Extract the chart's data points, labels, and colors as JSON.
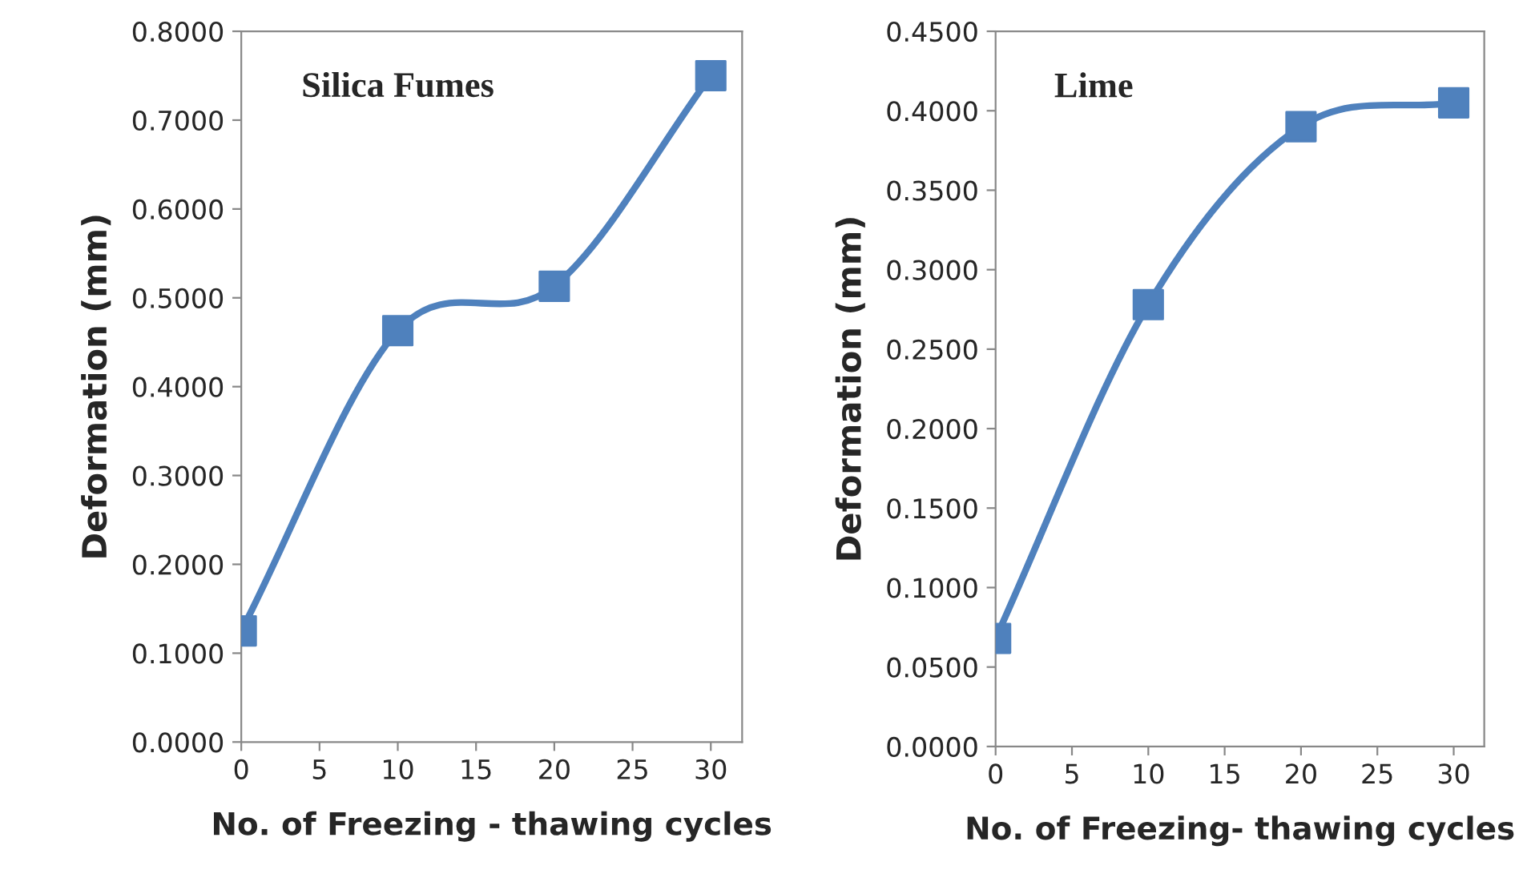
{
  "chart_data": [
    {
      "type": "line",
      "title": "Silica Fumes",
      "xlabel": "No. of Freezing - thawing cycles",
      "ylabel": "Deformation (mm)",
      "x": [
        0,
        10,
        20,
        30
      ],
      "series": [
        {
          "color": "#4f81bd",
          "values": [
            0.125,
            0.463,
            0.513,
            0.75
          ]
        }
      ],
      "marker": "square",
      "line_style": "solid",
      "grid": false,
      "legend": false,
      "xlim": [
        0,
        32
      ],
      "xticks": [
        0,
        5,
        10,
        15,
        20,
        25,
        30
      ],
      "ylim": [
        0,
        0.8
      ],
      "yticks": [
        {
          "value": 0,
          "label": "0.0000"
        },
        {
          "value": 0.1,
          "label": "0.1000"
        },
        {
          "value": 0.2,
          "label": "0.2000"
        },
        {
          "value": 0.3,
          "label": "0.3000"
        },
        {
          "value": 0.4,
          "label": "0.4000"
        },
        {
          "value": 0.5,
          "label": "0.5000"
        },
        {
          "value": 0.6,
          "label": "0.6000"
        },
        {
          "value": 0.7,
          "label": "0.7000"
        },
        {
          "value": 0.8,
          "label": "0.8000"
        }
      ]
    },
    {
      "type": "line",
      "title": "Lime",
      "xlabel": "No. of Freezing- thawing cycles",
      "ylabel": "Deformation (mm)",
      "x": [
        0,
        10,
        20,
        30
      ],
      "series": [
        {
          "color": "#4f81bd",
          "values": [
            0.068,
            0.278,
            0.39,
            0.405
          ]
        }
      ],
      "marker": "square",
      "line_style": "solid",
      "grid": false,
      "legend": false,
      "xlim": [
        0,
        32
      ],
      "xticks": [
        0,
        5,
        10,
        15,
        20,
        25,
        30
      ],
      "ylim": [
        0,
        0.45
      ],
      "yticks": [
        {
          "value": 0,
          "label": "0.0000"
        },
        {
          "value": 0.05,
          "label": "0.0500"
        },
        {
          "value": 0.1,
          "label": "0.1000"
        },
        {
          "value": 0.15,
          "label": "0.1500"
        },
        {
          "value": 0.2,
          "label": "0.2000"
        },
        {
          "value": 0.25,
          "label": "0.2500"
        },
        {
          "value": 0.3,
          "label": "0.3000"
        },
        {
          "value": 0.35,
          "label": "0.3500"
        },
        {
          "value": 0.4,
          "label": "0.4000"
        },
        {
          "value": 0.45,
          "label": "0.4500"
        }
      ]
    }
  ]
}
